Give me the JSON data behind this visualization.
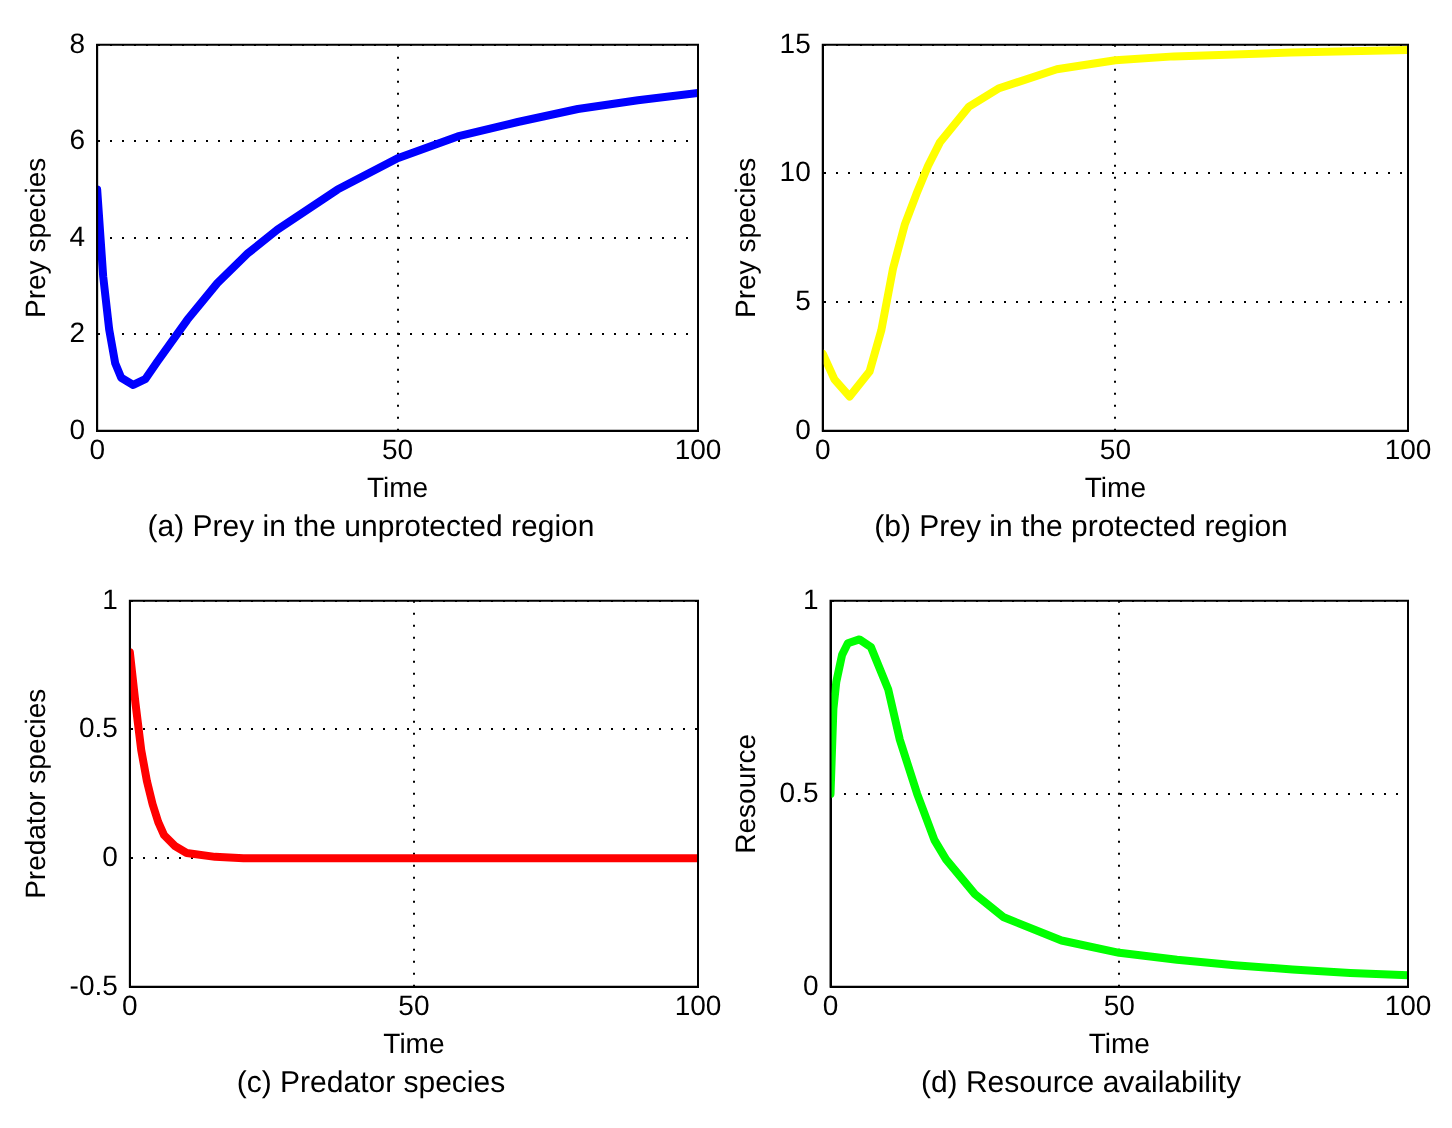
{
  "chart_data": [
    {
      "type": "line",
      "xlabel": "Time",
      "ylabel": "Prey species",
      "annotations": [
        "(a) Prey in the unprotected region"
      ],
      "xlim": [
        0,
        100
      ],
      "xticks": [
        0,
        50,
        100
      ],
      "ylim": [
        0,
        8
      ],
      "yticks": [
        0,
        2,
        4,
        6,
        8
      ],
      "grid": true,
      "line_style": "solid",
      "marker": "none",
      "series": [
        {
          "color": "#0000ff",
          "x": [
            0,
            1,
            2,
            3,
            4,
            6,
            8,
            10,
            15,
            20,
            25,
            30,
            40,
            50,
            60,
            70,
            80,
            90,
            100
          ],
          "values": [
            5.0,
            3.2,
            2.1,
            1.4,
            1.1,
            0.95,
            1.07,
            1.43,
            2.3,
            3.06,
            3.67,
            4.17,
            5.0,
            5.65,
            6.1,
            6.4,
            6.67,
            6.85,
            7.0
          ]
        }
      ]
    },
    {
      "type": "line",
      "xlabel": "Time",
      "ylabel": "Prey species",
      "annotations": [
        "(b) Prey in the protected region"
      ],
      "xlim": [
        0,
        100
      ],
      "xticks": [
        0,
        50,
        100
      ],
      "ylim": [
        0,
        15
      ],
      "yticks": [
        0,
        5,
        10,
        15
      ],
      "grid": true,
      "line_style": "solid",
      "marker": "none",
      "series": [
        {
          "color": "#ffff00",
          "x": [
            0,
            2,
            4.6,
            8,
            10,
            12,
            14,
            16,
            18,
            20,
            25,
            30,
            40,
            50,
            60,
            80,
            100
          ],
          "values": [
            3.0,
            2.0,
            1.33,
            2.3,
            3.9,
            6.3,
            8.0,
            9.2,
            10.3,
            11.2,
            12.6,
            13.3,
            14.05,
            14.4,
            14.55,
            14.7,
            14.8
          ]
        }
      ]
    },
    {
      "type": "line",
      "xlabel": "Time",
      "ylabel": "Predator species",
      "annotations": [
        "(c) Predator species"
      ],
      "xlim": [
        0,
        100
      ],
      "xticks": [
        0,
        50,
        100
      ],
      "ylim": [
        -0.5,
        1
      ],
      "yticks": [
        -0.5,
        0,
        0.5,
        1
      ],
      "grid": true,
      "line_style": "solid",
      "marker": "none",
      "series": [
        {
          "color": "#ff0000",
          "x": [
            0,
            1,
            2,
            3,
            4,
            5,
            6,
            8,
            10,
            15,
            20,
            50,
            100
          ],
          "values": [
            0.8,
            0.6,
            0.42,
            0.3,
            0.21,
            0.14,
            0.09,
            0.046,
            0.02,
            0.005,
            0,
            0,
            0
          ]
        }
      ]
    },
    {
      "type": "line",
      "xlabel": "Time",
      "ylabel": "Resource",
      "annotations": [
        "(d) Resource availability"
      ],
      "xlim": [
        0,
        100
      ],
      "xticks": [
        0,
        50,
        100
      ],
      "ylim": [
        0,
        1
      ],
      "yticks": [
        0,
        0.5,
        1
      ],
      "grid": true,
      "line_style": "solid",
      "marker": "none",
      "series": [
        {
          "color": "#00ff00",
          "x": [
            0,
            0.5,
            1,
            2,
            3,
            5,
            7,
            10,
            12,
            15,
            18,
            20,
            25,
            30,
            40,
            50,
            60,
            70,
            80,
            90,
            100
          ],
          "values": [
            0.5,
            0.72,
            0.79,
            0.86,
            0.89,
            0.9,
            0.88,
            0.77,
            0.64,
            0.5,
            0.38,
            0.33,
            0.24,
            0.18,
            0.12,
            0.088,
            0.07,
            0.056,
            0.045,
            0.036,
            0.03
          ]
        }
      ]
    }
  ]
}
